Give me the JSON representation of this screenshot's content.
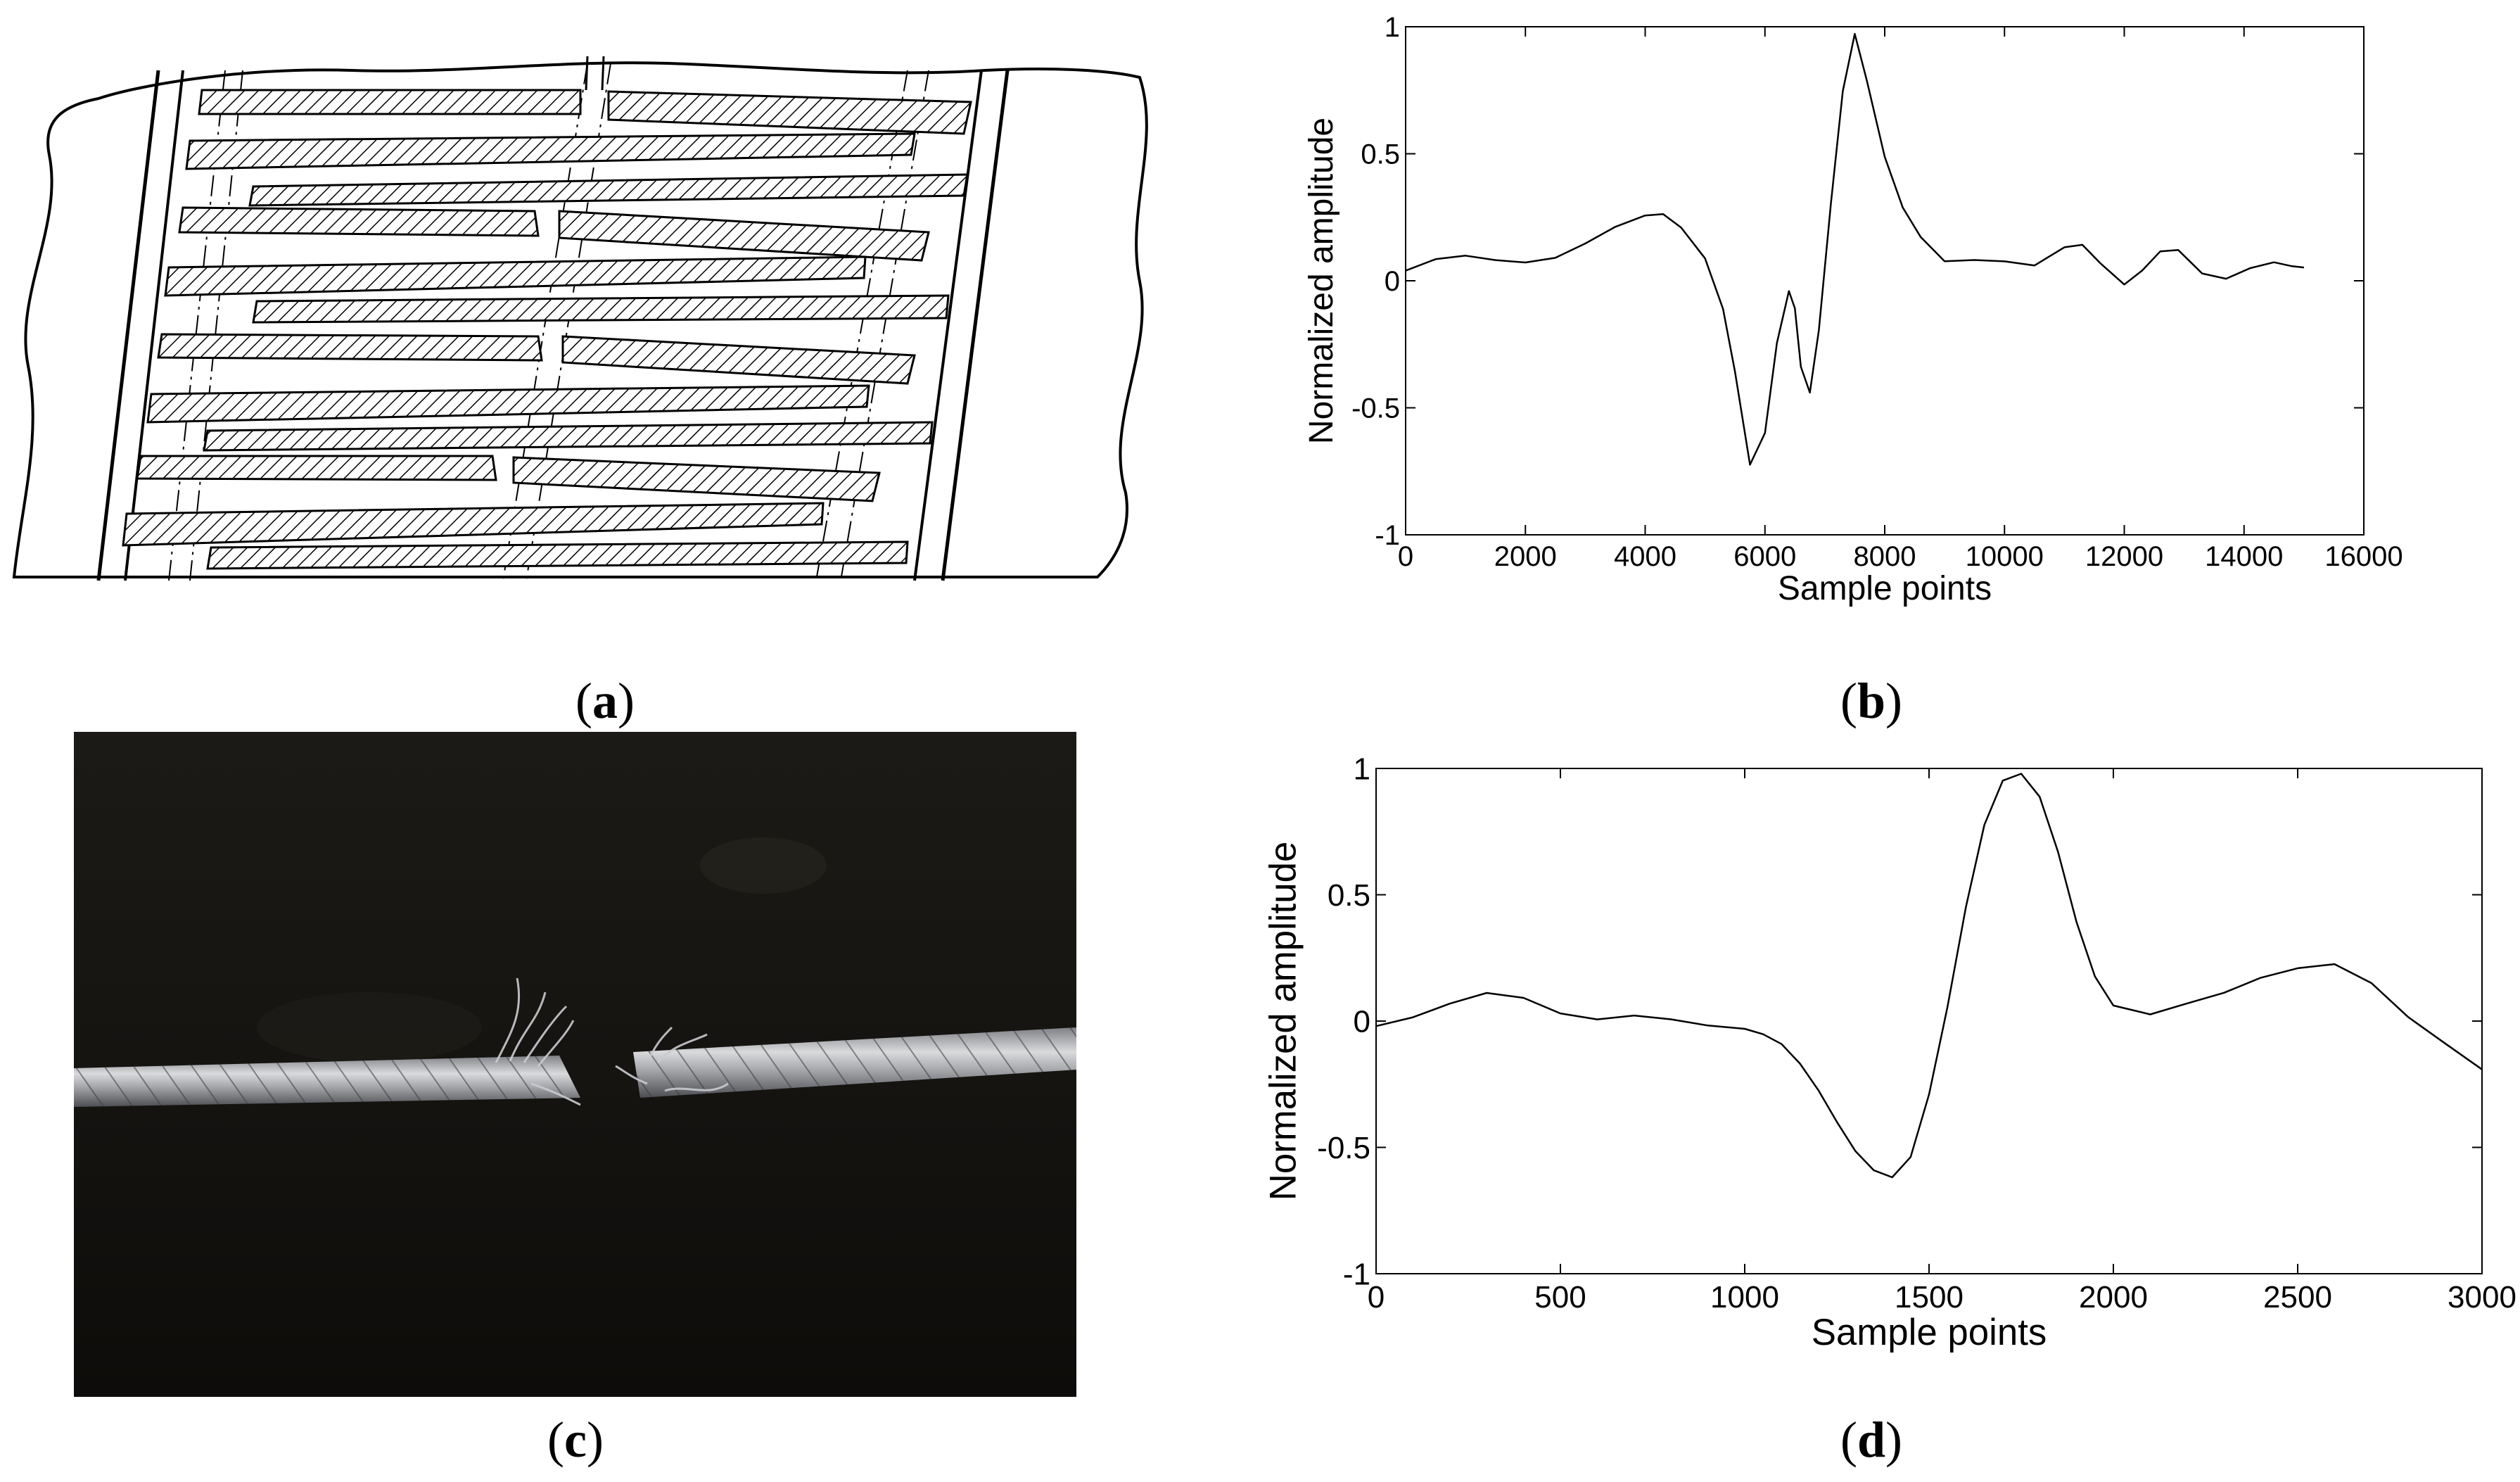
{
  "captions": {
    "a": {
      "open": "(",
      "letter": "a",
      "close": ")"
    },
    "b": {
      "open": "(",
      "letter": "b",
      "close": ")"
    },
    "c": {
      "open": "(",
      "letter": "c",
      "close": ")"
    },
    "d": {
      "open": "(",
      "letter": "d",
      "close": ")"
    }
  },
  "chart_data": [
    {
      "type": "line",
      "panel": "b",
      "title": "",
      "xlabel": "Sample points",
      "ylabel": "Normalized amplitude",
      "xlim": [
        0,
        16000
      ],
      "ylim": [
        -1,
        1
      ],
      "xticks": [
        0,
        2000,
        4000,
        6000,
        8000,
        10000,
        12000,
        14000,
        16000
      ],
      "yticks": [
        -1,
        -0.5,
        0,
        0.5,
        1
      ],
      "xtick_labels": [
        "0",
        "2000",
        "4000",
        "6000",
        "8000",
        "10000",
        "12000",
        "14000",
        "16000"
      ],
      "ytick_labels": [
        "-1",
        "-0.5",
        "0",
        "0.5",
        "1"
      ],
      "grid": false,
      "line_color": "#000000",
      "series": [
        {
          "x": [
            0,
            500,
            1000,
            1500,
            2000,
            2500,
            3000,
            3500,
            4000,
            4300,
            4600,
            5000,
            5300,
            5500,
            5750,
            6000,
            6200,
            6400,
            6500,
            6600,
            6750,
            6900,
            7100,
            7300,
            7500,
            7700,
            8000,
            8300,
            8600,
            9000,
            9500,
            10000,
            10500,
            11000,
            11300,
            11600,
            12000,
            12300,
            12600,
            12900,
            13300,
            13700,
            14100,
            14500,
            14800,
            15000
          ],
          "y": [
            0.04,
            0.08,
            0.09,
            0.07,
            0.06,
            0.08,
            0.14,
            0.21,
            0.26,
            0.27,
            0.22,
            0.1,
            -0.1,
            -0.35,
            -0.72,
            -0.6,
            -0.25,
            -0.05,
            -0.12,
            -0.35,
            -0.45,
            -0.2,
            0.3,
            0.75,
            0.98,
            0.8,
            0.5,
            0.3,
            0.18,
            0.08,
            0.08,
            0.07,
            0.05,
            0.12,
            0.13,
            0.06,
            -0.02,
            0.04,
            0.12,
            0.13,
            0.04,
            0.02,
            0.06,
            0.08,
            0.06,
            0.05
          ]
        }
      ]
    },
    {
      "type": "line",
      "panel": "d",
      "title": "",
      "xlabel": "Sample points",
      "ylabel": "Normalized amplitude",
      "xlim": [
        0,
        3000
      ],
      "ylim": [
        -1,
        1
      ],
      "xticks": [
        0,
        500,
        1000,
        1500,
        2000,
        2500,
        3000
      ],
      "yticks": [
        -1,
        -0.5,
        0,
        0.5,
        1
      ],
      "xtick_labels": [
        "0",
        "500",
        "1000",
        "1500",
        "2000",
        "2500",
        "3000"
      ],
      "ytick_labels": [
        "-1",
        "-0.5",
        "0",
        "0.5",
        "1"
      ],
      "grid": false,
      "line_color": "#000000",
      "series": [
        {
          "x": [
            0,
            100,
            200,
            300,
            400,
            500,
            600,
            700,
            800,
            900,
            1000,
            1050,
            1100,
            1150,
            1200,
            1250,
            1300,
            1350,
            1400,
            1450,
            1500,
            1550,
            1600,
            1650,
            1700,
            1750,
            1800,
            1850,
            1900,
            1950,
            2000,
            2100,
            2200,
            2300,
            2400,
            2500,
            2600,
            2700,
            2800,
            2900,
            3000
          ],
          "y": [
            -0.02,
            0.01,
            0.06,
            0.1,
            0.08,
            0.02,
            0.0,
            0.02,
            0.01,
            -0.01,
            -0.02,
            -0.04,
            -0.08,
            -0.16,
            -0.27,
            -0.4,
            -0.52,
            -0.6,
            -0.63,
            -0.55,
            -0.3,
            0.05,
            0.45,
            0.78,
            0.96,
            0.99,
            0.9,
            0.68,
            0.4,
            0.18,
            0.06,
            0.02,
            0.06,
            0.1,
            0.16,
            0.2,
            0.22,
            0.15,
            0.02,
            -0.08,
            -0.18
          ]
        }
      ]
    }
  ]
}
